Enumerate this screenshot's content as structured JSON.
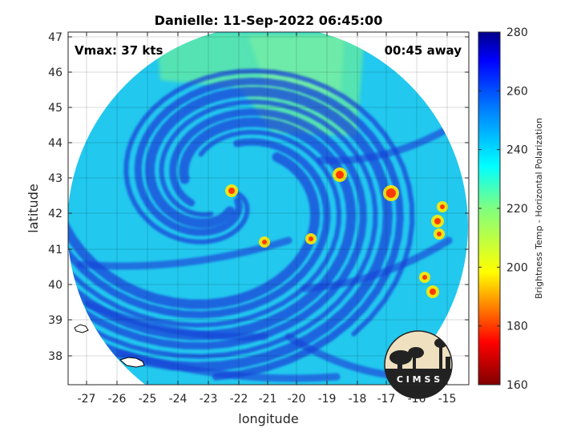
{
  "title": "Danielle: 11-Sep-2022 06:45:00",
  "vmax_label": "Vmax: 37 kts",
  "time_label": "00:45 away",
  "axes": {
    "xlabel": "longitude",
    "ylabel": "latitude",
    "x_ticks": [
      "-27",
      "-26",
      "-25",
      "-24",
      "-23",
      "-22",
      "-21",
      "-20",
      "-19",
      "-18",
      "-17",
      "-16",
      "-15"
    ],
    "y_ticks": [
      "38",
      "39",
      "40",
      "41",
      "42",
      "43",
      "44",
      "45",
      "46",
      "47"
    ]
  },
  "colorbar": {
    "label": "Brightness Temp - Horizontal Polarization",
    "ticks": [
      "160",
      "180",
      "200",
      "220",
      "240",
      "260",
      "280"
    ]
  },
  "logo": {
    "text": "C I M S S"
  },
  "colors": {
    "background_cyan": "#22c8ee",
    "band_blue": "#1a44d8",
    "green_sector": "#5ee8a8",
    "hot_spots": "#ff3a00"
  }
}
